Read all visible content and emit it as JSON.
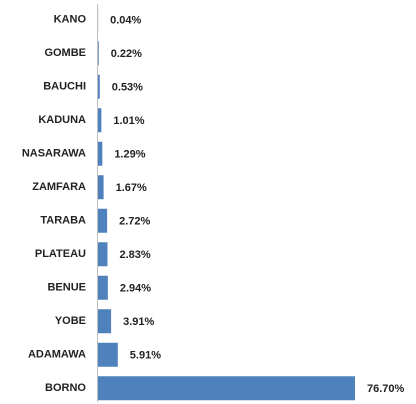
{
  "chart_data": {
    "type": "hbar",
    "categories": [
      "KANO",
      "GOMBE",
      "BAUCHI",
      "KADUNA",
      "NASARAWA",
      "ZAMFARA",
      "TARABA",
      "PLATEAU",
      "BENUE",
      "YOBE",
      "ADAMAWA",
      "BORNO"
    ],
    "values": [
      0.04,
      0.22,
      0.53,
      1.01,
      1.29,
      1.67,
      2.72,
      2.83,
      2.94,
      3.91,
      5.91,
      76.7
    ],
    "value_labels": [
      "0.04%",
      "0.22%",
      "0.53%",
      "1.01%",
      "1.29%",
      "1.67%",
      "2.72%",
      "2.83%",
      "2.94%",
      "3.91%",
      "5.91%",
      "76.70%"
    ],
    "color": "#4f81bd"
  }
}
